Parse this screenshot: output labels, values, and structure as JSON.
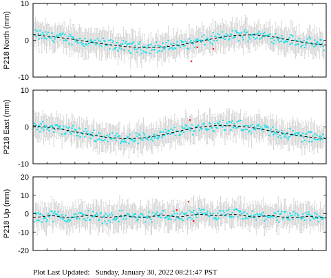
{
  "footer": {
    "label": "Plot Last Updated:",
    "timestamp": "Sunday, January 30, 2022 08:21:47 PST"
  },
  "chart_data": [
    {
      "type": "scatter",
      "ylabel": "P218 North (mm)",
      "ylim": [
        -10,
        10
      ],
      "yticks": [
        -10,
        0,
        10
      ],
      "grid": false,
      "colors": {
        "points": "#00e5ee",
        "errorbars": "#cccccc",
        "model": "#000000",
        "outliers": "#ff0000"
      },
      "model_series": {
        "x": [
          0,
          25,
          50,
          75,
          100,
          125,
          150,
          175,
          200,
          225,
          250,
          275,
          300,
          325,
          350,
          375,
          400
        ],
        "y": [
          1.5,
          1.0,
          0.4,
          -0.4,
          -1.1,
          -1.7,
          -2.0,
          -1.9,
          -1.3,
          -0.4,
          0.6,
          1.3,
          1.5,
          1.0,
          0.1,
          -0.8,
          -1.3
        ]
      },
      "outliers": [
        {
          "x": 246,
          "y": -2.3
        },
        {
          "x": 216,
          "y": -5.7
        },
        {
          "x": 224,
          "y": -1.9
        }
      ]
    },
    {
      "type": "scatter",
      "ylabel": "P218 East (mm)",
      "ylim": [
        -10,
        10
      ],
      "yticks": [
        -10,
        0,
        10
      ],
      "grid": false,
      "colors": {
        "points": "#00e5ee",
        "errorbars": "#cccccc",
        "model": "#000000",
        "outliers": "#ff0000"
      },
      "model_series": {
        "x": [
          0,
          25,
          50,
          75,
          100,
          125,
          150,
          175,
          200,
          225,
          250,
          275,
          300,
          325,
          350,
          375,
          400
        ],
        "y": [
          0.3,
          -0.2,
          -1.0,
          -2.0,
          -2.8,
          -3.2,
          -3.0,
          -2.2,
          -1.1,
          -0.1,
          0.4,
          0.3,
          -0.2,
          -1.1,
          -2.0,
          -2.7,
          -3.2
        ]
      },
      "outliers": [
        {
          "x": 214,
          "y": 1.9
        }
      ]
    },
    {
      "type": "scatter",
      "ylabel": "P218 Up (mm)",
      "ylim": [
        -20,
        20
      ],
      "yticks": [
        -20,
        -10,
        0,
        10,
        20
      ],
      "grid": false,
      "colors": {
        "points": "#00e5ee",
        "errorbars": "#cccccc",
        "model": "#000000",
        "outliers": "#ff0000"
      },
      "model_series": {
        "x": [
          0,
          25,
          50,
          75,
          100,
          125,
          150,
          175,
          200,
          225,
          250,
          275,
          300,
          325,
          350,
          375,
          400
        ],
        "y": [
          -2.2,
          -1.0,
          -2.3,
          -0.9,
          -2.2,
          -1.1,
          -2.2,
          -0.8,
          -1.8,
          -0.2,
          -1.2,
          -0.3,
          -1.8,
          -1.0,
          -2.4,
          -1.4,
          -2.3
        ]
      },
      "outliers": [
        {
          "x": 196,
          "y": 2.0
        },
        {
          "x": 212,
          "y": 6.5
        },
        {
          "x": 219,
          "y": -4.0
        }
      ]
    }
  ]
}
